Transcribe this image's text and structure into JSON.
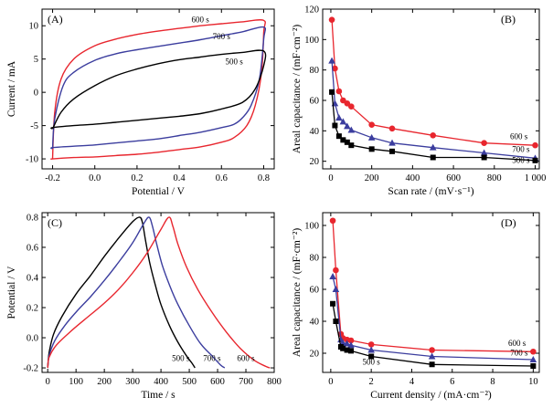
{
  "figure": {
    "colors": {
      "600 s": "#e8262e",
      "700 s": "#3b3d9e",
      "500 s": "#000000"
    }
  },
  "chart_data": [
    {
      "id": "A",
      "panel_label": "(A)",
      "type": "line",
      "xlabel": "Potential / V",
      "ylabel": "Current / mA",
      "xlim": [
        -0.25,
        0.85
      ],
      "ylim": [
        -11.5,
        12.5
      ],
      "xticks": [
        -0.2,
        0.0,
        0.2,
        0.4,
        0.6,
        0.8
      ],
      "xtick_labels": [
        "-0.2",
        "0.0",
        "0.2",
        "0.4",
        "0.6",
        "0.8"
      ],
      "yticks": [
        -10,
        -5,
        0,
        5,
        10
      ],
      "ytick_labels": [
        "-10",
        "-5",
        "0",
        "5",
        "10"
      ],
      "grid": false,
      "curve_labels": [
        {
          "text": "600 s",
          "x": 0.5,
          "y": 10.5
        },
        {
          "text": "700 s",
          "x": 0.6,
          "y": 8.0
        },
        {
          "text": "500 s",
          "x": 0.66,
          "y": 4.2
        }
      ],
      "series": [
        {
          "name": "600 s",
          "color": "#e8262e",
          "x": [
            -0.2,
            -0.19,
            -0.16,
            -0.1,
            0.0,
            0.1,
            0.2,
            0.3,
            0.4,
            0.5,
            0.6,
            0.7,
            0.8,
            0.8,
            0.79,
            0.76,
            0.72,
            0.66,
            0.6,
            0.5,
            0.4,
            0.3,
            0.2,
            0.1,
            0.0,
            -0.1,
            -0.2,
            -0.2
          ],
          "y": [
            -10.0,
            -3.0,
            2.0,
            5.0,
            7.0,
            8.0,
            8.7,
            9.2,
            9.6,
            10.0,
            10.3,
            10.6,
            10.8,
            9.0,
            3.0,
            -2.0,
            -5.0,
            -6.8,
            -7.5,
            -8.2,
            -8.6,
            -9.0,
            -9.3,
            -9.5,
            -9.7,
            -9.8,
            -10.0,
            -10.0
          ]
        },
        {
          "name": "700 s",
          "color": "#3b3d9e",
          "x": [
            -0.2,
            -0.19,
            -0.15,
            -0.1,
            0.0,
            0.1,
            0.2,
            0.3,
            0.4,
            0.5,
            0.6,
            0.7,
            0.8,
            0.8,
            0.78,
            0.74,
            0.7,
            0.66,
            0.6,
            0.5,
            0.4,
            0.3,
            0.2,
            0.1,
            0.0,
            -0.1,
            -0.2,
            -0.2
          ],
          "y": [
            -8.5,
            -4.0,
            1.0,
            3.0,
            4.8,
            5.8,
            6.4,
            6.9,
            7.4,
            7.9,
            8.5,
            9.1,
            9.8,
            8.0,
            2.0,
            -2.0,
            -3.8,
            -4.8,
            -5.3,
            -6.0,
            -6.5,
            -7.0,
            -7.3,
            -7.6,
            -7.9,
            -8.1,
            -8.3,
            -8.5
          ]
        },
        {
          "name": "500 s",
          "color": "#000000",
          "x": [
            -0.2,
            -0.16,
            -0.1,
            0.0,
            0.1,
            0.2,
            0.3,
            0.4,
            0.5,
            0.6,
            0.7,
            0.8,
            0.8,
            0.76,
            0.7,
            0.6,
            0.5,
            0.4,
            0.3,
            0.2,
            0.1,
            0.0,
            -0.1,
            -0.2,
            -0.2
          ],
          "y": [
            -5.5,
            -3.0,
            -1.0,
            1.0,
            2.5,
            3.5,
            4.3,
            4.9,
            5.3,
            5.7,
            6.0,
            6.2,
            4.0,
            0.5,
            -1.5,
            -2.5,
            -3.2,
            -3.6,
            -3.9,
            -4.2,
            -4.5,
            -4.8,
            -5.0,
            -5.3,
            -5.5
          ]
        }
      ]
    },
    {
      "id": "B",
      "panel_label": "(B)",
      "type": "line",
      "xlabel": "Scan rate / (mV·s⁻¹)",
      "ylabel": "Areal capacitance / (mF·cm⁻²)",
      "xlim": [
        -40,
        1020
      ],
      "ylim": [
        15,
        120
      ],
      "xticks": [
        0,
        200,
        400,
        600,
        800,
        1000
      ],
      "xtick_labels": [
        "0",
        "200",
        "400",
        "600",
        "800",
        "1 000"
      ],
      "yticks": [
        20,
        40,
        60,
        80,
        100,
        120
      ],
      "ytick_labels": [
        "20",
        "40",
        "60",
        "80",
        "100",
        "120"
      ],
      "grid": false,
      "curve_labels": [
        {
          "text": "600 s",
          "x": 920,
          "y": 34.5
        },
        {
          "text": "700 s",
          "x": 930,
          "y": 26.0
        },
        {
          "text": "500 s",
          "x": 930,
          "y": 19.0
        }
      ],
      "series": [
        {
          "name": "600 s",
          "color": "#e8262e",
          "marker": "circle",
          "x": [
            5,
            20,
            40,
            60,
            80,
            100,
            200,
            300,
            500,
            750,
            1000
          ],
          "y": [
            113,
            81,
            66,
            60,
            58,
            56,
            44,
            41.5,
            37,
            32,
            30.5
          ]
        },
        {
          "name": "700 s",
          "color": "#3b3d9e",
          "marker": "triangle",
          "x": [
            5,
            20,
            40,
            60,
            80,
            100,
            200,
            300,
            500,
            750,
            1000
          ],
          "y": [
            86,
            58,
            48.5,
            46,
            43,
            40.5,
            35.5,
            32,
            29,
            25.5,
            22
          ]
        },
        {
          "name": "500 s",
          "color": "#000000",
          "marker": "square",
          "x": [
            5,
            20,
            40,
            60,
            80,
            100,
            200,
            300,
            500,
            750,
            1000
          ],
          "y": [
            65.5,
            43.5,
            36.5,
            34,
            32.5,
            30.5,
            28,
            26.5,
            22.5,
            22.5,
            20.5
          ]
        }
      ]
    },
    {
      "id": "C",
      "panel_label": "(C)",
      "type": "line",
      "xlabel": "Time / s",
      "ylabel": "Potential / V",
      "xlim": [
        -20,
        800
      ],
      "ylim": [
        -0.23,
        0.83
      ],
      "xticks": [
        0,
        100,
        200,
        300,
        400,
        500,
        600,
        700,
        800
      ],
      "xtick_labels": [
        "0",
        "100",
        "200",
        "300",
        "400",
        "500",
        "600",
        "700",
        "800"
      ],
      "yticks": [
        -0.2,
        0.0,
        0.2,
        0.4,
        0.6,
        0.8
      ],
      "ytick_labels": [
        "-0.2",
        "0.0",
        "0.2",
        "0.4",
        "0.6",
        "0.8"
      ],
      "grid": false,
      "curve_labels": [
        {
          "text": "500 s",
          "x": 470,
          "y": -0.155
        },
        {
          "text": "700 s",
          "x": 580,
          "y": -0.155
        },
        {
          "text": "600 s",
          "x": 700,
          "y": -0.155
        }
      ],
      "series": [
        {
          "name": "500 s",
          "color": "#000000",
          "x": [
            0,
            5,
            20,
            50,
            100,
            150,
            200,
            250,
            300,
            325,
            335,
            345,
            360,
            380,
            400,
            430,
            460,
            490,
            510,
            520
          ],
          "y": [
            -0.2,
            -0.1,
            0.02,
            0.14,
            0.29,
            0.41,
            0.54,
            0.66,
            0.77,
            0.8,
            0.76,
            0.65,
            0.5,
            0.35,
            0.22,
            0.08,
            -0.03,
            -0.12,
            -0.17,
            -0.2
          ]
        },
        {
          "name": "700 s",
          "color": "#3b3d9e",
          "x": [
            0,
            5,
            25,
            60,
            100,
            150,
            200,
            250,
            300,
            340,
            358,
            370,
            385,
            405,
            430,
            460,
            500,
            540,
            580,
            610,
            625
          ],
          "y": [
            -0.2,
            -0.12,
            -0.02,
            0.08,
            0.17,
            0.27,
            0.38,
            0.5,
            0.63,
            0.76,
            0.8,
            0.74,
            0.62,
            0.48,
            0.35,
            0.22,
            0.08,
            -0.04,
            -0.12,
            -0.18,
            -0.2
          ]
        },
        {
          "name": "600 s",
          "color": "#e8262e",
          "x": [
            0,
            5,
            30,
            80,
            130,
            200,
            250,
            300,
            350,
            400,
            428,
            442,
            460,
            490,
            530,
            580,
            630,
            680,
            730,
            770,
            785
          ],
          "y": [
            -0.2,
            -0.13,
            -0.05,
            0.04,
            0.12,
            0.23,
            0.32,
            0.43,
            0.56,
            0.72,
            0.8,
            0.74,
            0.62,
            0.47,
            0.32,
            0.17,
            0.04,
            -0.07,
            -0.15,
            -0.19,
            -0.2
          ]
        }
      ]
    },
    {
      "id": "D",
      "panel_label": "(D)",
      "type": "line",
      "xlabel": "Current density / (mA·cm⁻²)",
      "ylabel": "Areal capacitance / (mF·cm⁻²)",
      "xlim": [
        -0.4,
        10.3
      ],
      "ylim": [
        8,
        108
      ],
      "xticks": [
        0,
        2,
        4,
        6,
        8,
        10
      ],
      "xtick_labels": [
        "0",
        "2",
        "4",
        "6",
        "8",
        "10"
      ],
      "yticks": [
        20,
        40,
        60,
        80,
        100
      ],
      "ytick_labels": [
        "20",
        "40",
        "60",
        "80",
        "100"
      ],
      "grid": false,
      "curve_labels": [
        {
          "text": "600 s",
          "x": 9.2,
          "y": 24.5
        },
        {
          "text": "700 s",
          "x": 9.3,
          "y": 18.5
        },
        {
          "text": "500 s",
          "x": 2.0,
          "y": 13.0
        }
      ],
      "series": [
        {
          "name": "600 s",
          "color": "#e8262e",
          "marker": "circle",
          "x": [
            0.1,
            0.25,
            0.5,
            0.6,
            0.8,
            1.0,
            2.0,
            5.0,
            10.0
          ],
          "y": [
            103,
            72,
            32,
            29.5,
            28.5,
            28,
            25.5,
            22,
            21
          ]
        },
        {
          "name": "700 s",
          "color": "#3b3d9e",
          "marker": "triangle",
          "x": [
            0.1,
            0.25,
            0.5,
            0.6,
            0.8,
            1.0,
            2.0,
            5.0,
            10.0
          ],
          "y": [
            68,
            60,
            28.5,
            26.5,
            26,
            25,
            22,
            18,
            16
          ]
        },
        {
          "name": "500 s",
          "color": "#000000",
          "marker": "square",
          "x": [
            0.1,
            0.25,
            0.5,
            0.6,
            0.8,
            1.0,
            2.0,
            5.0,
            10.0
          ],
          "y": [
            51,
            40,
            24,
            23,
            22,
            21.5,
            18,
            13,
            12
          ]
        }
      ]
    }
  ]
}
